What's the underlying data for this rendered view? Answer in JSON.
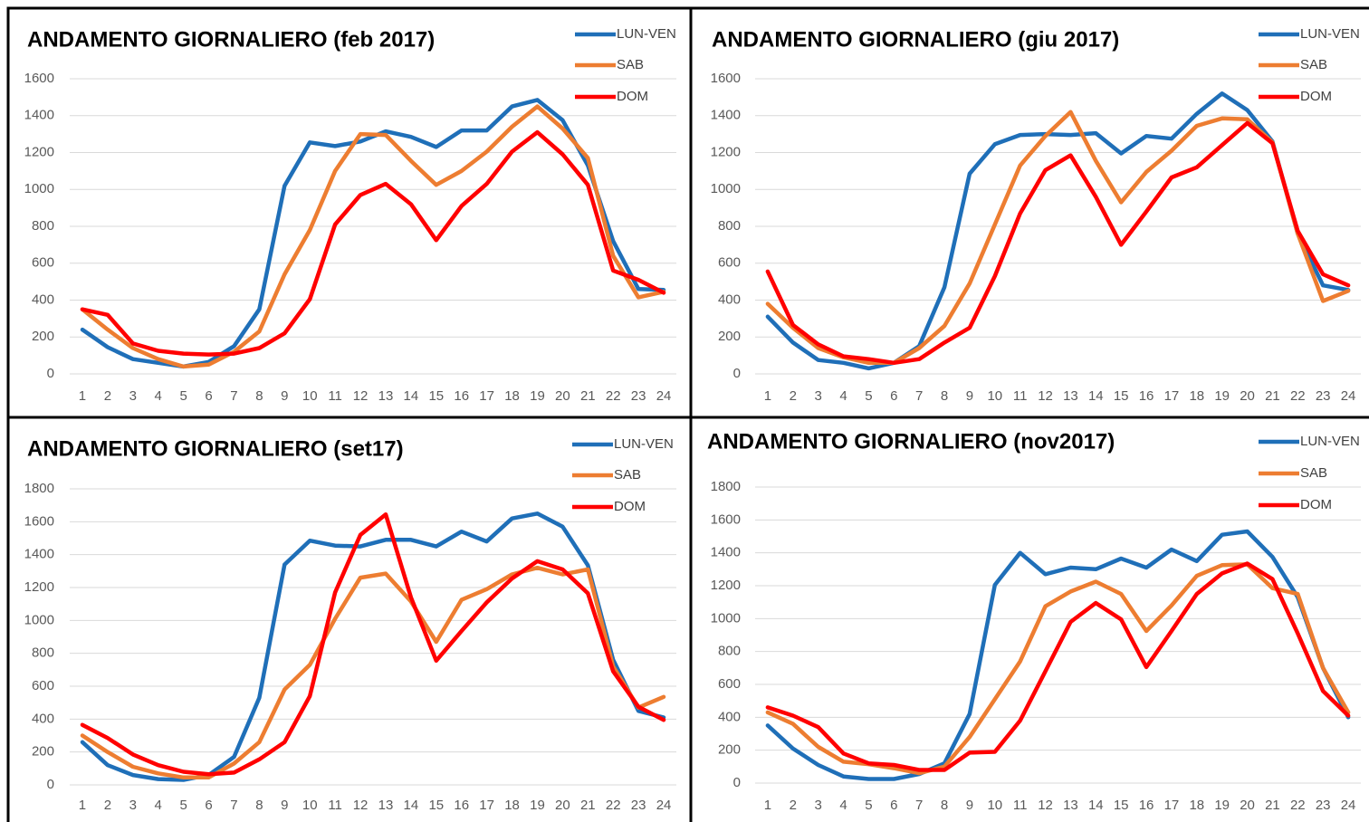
{
  "chart_data": [
    {
      "type": "line",
      "title": "ANDAMENTO GIORNALIERO (feb 2017)",
      "categories": [
        "1",
        "2",
        "3",
        "4",
        "5",
        "6",
        "7",
        "8",
        "9",
        "10",
        "11",
        "12",
        "13",
        "14",
        "15",
        "16",
        "17",
        "18",
        "19",
        "20",
        "21",
        "22",
        "23",
        "24"
      ],
      "ylim": [
        0,
        1600
      ],
      "yticks": [
        0,
        200,
        400,
        600,
        800,
        1000,
        1200,
        1400,
        1600
      ],
      "grid": true,
      "series": [
        {
          "name": "LUN-VEN",
          "color": "#1f6fb8",
          "values": [
            240,
            145,
            80,
            60,
            40,
            65,
            150,
            350,
            1020,
            1255,
            1235,
            1260,
            1315,
            1285,
            1230,
            1320,
            1320,
            1450,
            1485,
            1375,
            1130,
            720,
            460,
            455
          ]
        },
        {
          "name": "SAB",
          "color": "#ed7d31",
          "values": [
            350,
            240,
            140,
            80,
            40,
            50,
            120,
            230,
            540,
            780,
            1100,
            1300,
            1295,
            1155,
            1025,
            1100,
            1205,
            1340,
            1450,
            1330,
            1170,
            640,
            415,
            445
          ]
        },
        {
          "name": "DOM",
          "color": "#ff0000",
          "values": [
            350,
            320,
            165,
            125,
            110,
            105,
            110,
            140,
            220,
            405,
            810,
            970,
            1030,
            920,
            725,
            910,
            1030,
            1205,
            1310,
            1190,
            1025,
            560,
            510,
            440
          ]
        }
      ]
    },
    {
      "type": "line",
      "title": "ANDAMENTO GIORNALIERO (giu 2017)",
      "categories": [
        "1",
        "2",
        "3",
        "4",
        "5",
        "6",
        "7",
        "8",
        "9",
        "10",
        "11",
        "12",
        "13",
        "14",
        "15",
        "16",
        "17",
        "18",
        "19",
        "20",
        "21",
        "22",
        "23",
        "24"
      ],
      "ylim": [
        0,
        1600
      ],
      "yticks": [
        0,
        200,
        400,
        600,
        800,
        1000,
        1200,
        1400,
        1600
      ],
      "grid": true,
      "series": [
        {
          "name": "LUN-VEN",
          "color": "#1f6fb8",
          "values": [
            310,
            170,
            75,
            60,
            30,
            60,
            150,
            470,
            1085,
            1245,
            1295,
            1300,
            1295,
            1305,
            1195,
            1290,
            1275,
            1410,
            1520,
            1430,
            1260,
            760,
            480,
            455
          ]
        },
        {
          "name": "SAB",
          "color": "#ed7d31",
          "values": [
            380,
            250,
            140,
            90,
            60,
            60,
            140,
            260,
            490,
            810,
            1130,
            1290,
            1420,
            1155,
            930,
            1095,
            1210,
            1345,
            1385,
            1380,
            1255,
            760,
            395,
            450
          ]
        },
        {
          "name": "DOM",
          "color": "#ff0000",
          "values": [
            555,
            265,
            160,
            95,
            80,
            60,
            80,
            170,
            250,
            530,
            870,
            1105,
            1185,
            960,
            700,
            880,
            1065,
            1120,
            1240,
            1360,
            1250,
            775,
            540,
            480
          ]
        }
      ]
    },
    {
      "type": "line",
      "title": "ANDAMENTO GIORNALIERO (set17)",
      "categories": [
        "1",
        "2",
        "3",
        "4",
        "5",
        "6",
        "7",
        "8",
        "9",
        "10",
        "11",
        "12",
        "13",
        "14",
        "15",
        "16",
        "17",
        "18",
        "19",
        "20",
        "21",
        "22",
        "23",
        "24"
      ],
      "ylim": [
        0,
        1800
      ],
      "yticks": [
        0,
        200,
        400,
        600,
        800,
        1000,
        1200,
        1400,
        1600,
        1800
      ],
      "grid": true,
      "series": [
        {
          "name": "LUN-VEN",
          "color": "#1f6fb8",
          "values": [
            260,
            120,
            60,
            35,
            30,
            60,
            170,
            530,
            1340,
            1485,
            1455,
            1450,
            1490,
            1490,
            1450,
            1540,
            1480,
            1620,
            1650,
            1570,
            1335,
            760,
            450,
            410
          ]
        },
        {
          "name": "SAB",
          "color": "#ed7d31",
          "values": [
            300,
            200,
            110,
            70,
            45,
            45,
            130,
            260,
            580,
            730,
            1010,
            1260,
            1285,
            1115,
            870,
            1125,
            1190,
            1280,
            1320,
            1280,
            1310,
            720,
            470,
            535
          ]
        },
        {
          "name": "DOM",
          "color": "#ff0000",
          "values": [
            365,
            285,
            185,
            120,
            80,
            65,
            75,
            155,
            260,
            540,
            1170,
            1520,
            1645,
            1140,
            755,
            935,
            1110,
            1255,
            1360,
            1310,
            1165,
            690,
            475,
            395
          ]
        }
      ]
    },
    {
      "type": "line",
      "title": "ANDAMENTO GIORNALIERO (nov2017)",
      "categories": [
        "1",
        "2",
        "3",
        "4",
        "5",
        "6",
        "7",
        "8",
        "9",
        "10",
        "11",
        "12",
        "13",
        "14",
        "15",
        "16",
        "17",
        "18",
        "19",
        "20",
        "21",
        "22",
        "23",
        "24"
      ],
      "ylim": [
        0,
        1800
      ],
      "yticks": [
        0,
        200,
        400,
        600,
        800,
        1000,
        1200,
        1400,
        1600,
        1800
      ],
      "grid": true,
      "series": [
        {
          "name": "LUN-VEN",
          "color": "#1f6fb8",
          "values": [
            350,
            210,
            110,
            40,
            25,
            25,
            55,
            120,
            420,
            1205,
            1400,
            1270,
            1310,
            1300,
            1365,
            1310,
            1420,
            1350,
            1510,
            1530,
            1375,
            1130,
            700,
            400
          ]
        },
        {
          "name": "SAB",
          "color": "#ed7d31",
          "values": [
            430,
            360,
            220,
            130,
            115,
            90,
            60,
            100,
            280,
            510,
            740,
            1075,
            1165,
            1225,
            1150,
            925,
            1080,
            1260,
            1325,
            1330,
            1185,
            1150,
            700,
            430
          ]
        },
        {
          "name": "DOM",
          "color": "#ff0000",
          "values": [
            460,
            410,
            340,
            180,
            120,
            110,
            80,
            80,
            185,
            190,
            380,
            680,
            980,
            1095,
            995,
            705,
            925,
            1150,
            1275,
            1335,
            1240,
            910,
            560,
            410
          ]
        }
      ]
    }
  ]
}
